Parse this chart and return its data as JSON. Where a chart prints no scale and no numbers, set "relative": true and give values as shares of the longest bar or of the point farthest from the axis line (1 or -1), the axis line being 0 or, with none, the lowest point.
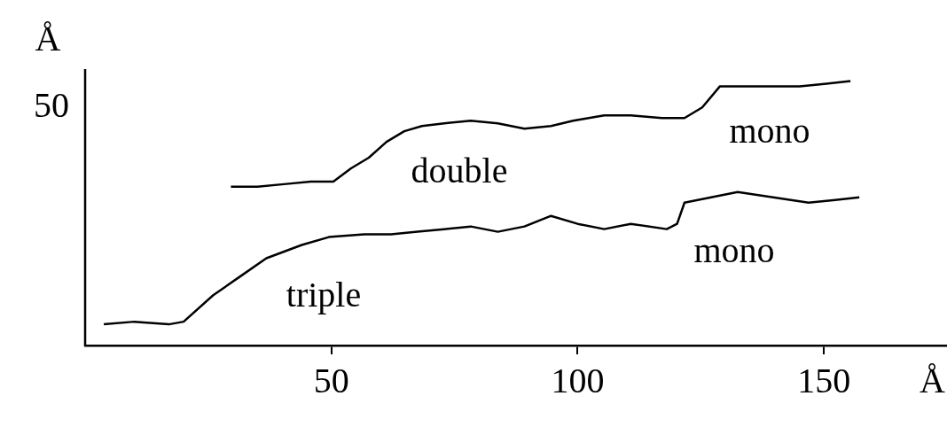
{
  "chart_data": {
    "type": "line",
    "xlabel": "Å",
    "ylabel": "Å",
    "relative": true,
    "xlim": [
      0,
      175
    ],
    "xticks": [
      50,
      100,
      150
    ],
    "grid": false,
    "legend": false,
    "marker": "none",
    "line_style": "solid",
    "series": [
      {
        "color": "#000000",
        "x": [
          29.6,
          35,
          40.4,
          45.8,
          50.4,
          54,
          57.6,
          61.2,
          64.8,
          68.4,
          72.9,
          78.3,
          83.8,
          89.2,
          94.6,
          99.1,
          105.4,
          110.8,
          117.1,
          121.7,
          125.3,
          128.9,
          134.3,
          139.7,
          145.1,
          150.5,
          155.4
        ],
        "values": [
          0.6,
          0.6,
          0.61,
          0.62,
          0.62,
          0.67,
          0.71,
          0.77,
          0.81,
          0.83,
          0.84,
          0.85,
          0.84,
          0.82,
          0.83,
          0.85,
          0.87,
          0.87,
          0.86,
          0.86,
          0.9,
          0.98,
          0.98,
          0.98,
          0.98,
          0.99,
          1
        ]
      },
      {
        "color": "#000000",
        "x": [
          3.8,
          10,
          17,
          20,
          26,
          31.4,
          36.8,
          44,
          49.5,
          56.7,
          62.1,
          67.5,
          72.9,
          78.3,
          83.8,
          89.2,
          94.6,
          100,
          105.4,
          110.8,
          118.1,
          120.2,
          121.7,
          127.1,
          132.5,
          139.7,
          146.9,
          152.3,
          157.2
        ],
        "values": [
          0.08,
          0.09,
          0.08,
          0.09,
          0.19,
          0.26,
          0.33,
          0.38,
          0.41,
          0.42,
          0.42,
          0.43,
          0.44,
          0.45,
          0.43,
          0.45,
          0.49,
          0.46,
          0.44,
          0.46,
          0.44,
          0.46,
          0.54,
          0.56,
          0.58,
          0.56,
          0.54,
          0.55,
          0.56
        ]
      }
    ],
    "annotations": [
      "50",
      "double",
      "mono",
      "triple",
      "mono"
    ]
  }
}
